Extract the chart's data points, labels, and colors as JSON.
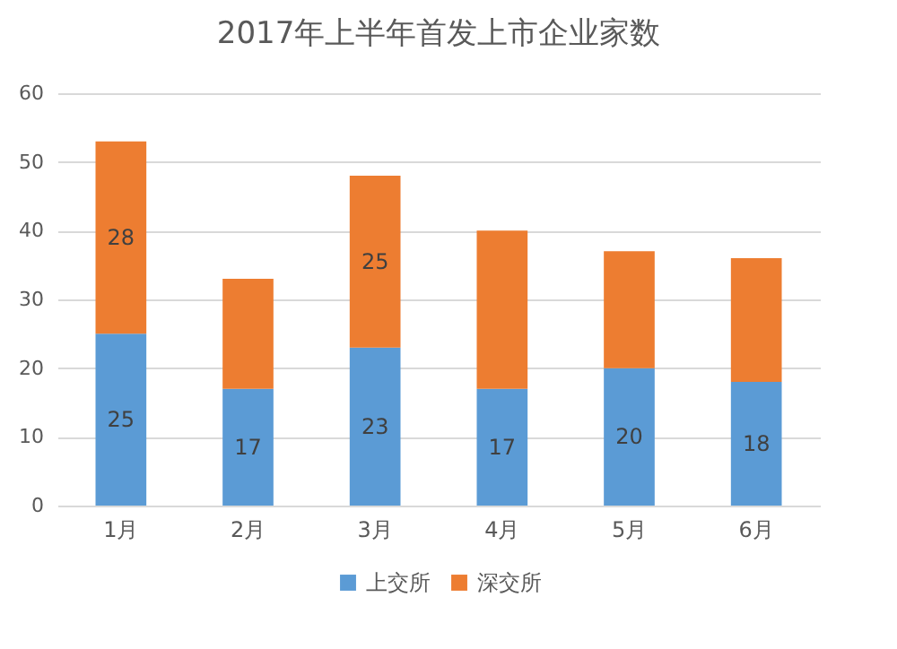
{
  "chart_data": {
    "type": "bar",
    "title": "2017年上半年首发上市企业家数",
    "categories": [
      "1月",
      "2月",
      "3月",
      "4月",
      "5月",
      "6月"
    ],
    "stacked": true,
    "series": [
      {
        "name": "上交所",
        "color": "#5b9bd5",
        "values": [
          25,
          17,
          23,
          17,
          20,
          18
        ],
        "value_labels": [
          "25",
          "17",
          "23",
          "17",
          "20",
          "18"
        ]
      },
      {
        "name": "深交所",
        "color": "#ed7d31",
        "values": [
          28,
          16,
          25,
          23,
          17,
          18
        ],
        "value_labels": [
          "28",
          null,
          "25",
          null,
          null,
          null
        ]
      }
    ],
    "ylim": [
      0,
      60
    ],
    "yticks": [
      0,
      10,
      20,
      30,
      40,
      50,
      60
    ],
    "grid": "y",
    "legend": "bottom"
  }
}
